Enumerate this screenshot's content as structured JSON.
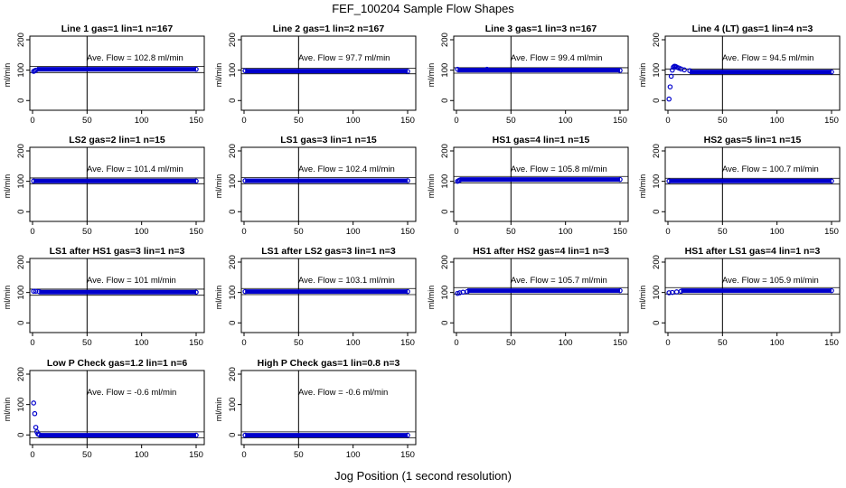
{
  "figure": {
    "title": "FEF_100204  Sample Flow Shapes",
    "xlabel": "Jog Position (1 second resolution)"
  },
  "chart_data": [
    {
      "type": "scatter",
      "title": "Line 1 gas=1 lin=1 n=167",
      "ylabel": "ml/min",
      "annotation": "Ave. Flow =  102.8  ml/min",
      "xlim": [
        0,
        150
      ],
      "ylim": [
        -20,
        200
      ],
      "xticks": [
        0,
        50,
        100,
        150
      ],
      "yticks": [
        0,
        100,
        200
      ],
      "reference_lines": {
        "vertical_x": 50,
        "horizontal_y": [
          92,
          112
        ]
      },
      "series": [
        {
          "color": "#0000cc",
          "points": [
            [
              1,
              96
            ],
            [
              2,
              98
            ],
            [
              3,
              100
            ],
            [
              150,
              103
            ]
          ],
          "fill_x": [
            4,
            150
          ],
          "fill_y": 103
        }
      ]
    },
    {
      "type": "scatter",
      "title": "Line 2 gas=1 lin=2 n=167",
      "ylabel": "ml/min",
      "annotation": "Ave. Flow =  97.7  ml/min",
      "xlim": [
        0,
        150
      ],
      "ylim": [
        -20,
        200
      ],
      "xticks": [
        0,
        50,
        100,
        150
      ],
      "yticks": [
        0,
        100,
        200
      ],
      "reference_lines": {
        "vertical_x": 50,
        "horizontal_y": [
          88,
          106
        ]
      },
      "series": [
        {
          "color": "#0000cc",
          "points": [
            [
              1,
              98
            ],
            [
              150,
              96
            ]
          ],
          "fill_x": [
            1,
            150
          ],
          "fill_y": 97
        }
      ]
    },
    {
      "type": "scatter",
      "title": "Line 3 gas=1 lin=3 n=167",
      "ylabel": "ml/min",
      "annotation": "Ave. Flow =  99.4  ml/min",
      "xlim": [
        0,
        150
      ],
      "ylim": [
        -20,
        200
      ],
      "xticks": [
        0,
        50,
        100,
        150
      ],
      "yticks": [
        0,
        100,
        200
      ],
      "reference_lines": {
        "vertical_x": 50,
        "horizontal_y": [
          90,
          108
        ]
      },
      "series": [
        {
          "color": "#0000cc",
          "points": [
            [
              1,
              103
            ],
            [
              28,
              103
            ],
            [
              150,
              99
            ]
          ],
          "fill_x": [
            1,
            150
          ],
          "fill_y": 100
        }
      ]
    },
    {
      "type": "scatter",
      "title": "Line 4 (LT) gas=1 lin=4 n=3",
      "ylabel": "ml/min",
      "annotation": "Ave. Flow =  94.5  ml/min",
      "xlim": [
        0,
        150
      ],
      "ylim": [
        -20,
        200
      ],
      "xticks": [
        0,
        50,
        100,
        150
      ],
      "yticks": [
        0,
        100,
        200
      ],
      "reference_lines": {
        "vertical_x": 50,
        "horizontal_y": [
          85,
          104
        ]
      },
      "series": [
        {
          "color": "#0000cc",
          "points": [
            [
              1,
              5
            ],
            [
              2,
              45
            ],
            [
              3,
              80
            ],
            [
              4,
              100
            ],
            [
              5,
              110
            ],
            [
              6,
              113
            ],
            [
              7,
              112
            ],
            [
              8,
              110
            ],
            [
              10,
              107
            ],
            [
              12,
              104
            ],
            [
              15,
              101
            ],
            [
              20,
              98
            ],
            [
              150,
              94
            ]
          ],
          "fill_x": [
            20,
            150
          ],
          "fill_y": 94
        }
      ]
    },
    {
      "type": "scatter",
      "title": "LS2 gas=2 lin=1 n=15",
      "ylabel": "ml/min",
      "annotation": "Ave. Flow =  101.4  ml/min",
      "xlim": [
        0,
        150
      ],
      "ylim": [
        -20,
        200
      ],
      "xticks": [
        0,
        50,
        100,
        150
      ],
      "yticks": [
        0,
        100,
        200
      ],
      "reference_lines": {
        "vertical_x": 50,
        "horizontal_y": [
          92,
          111
        ]
      },
      "series": [
        {
          "color": "#0000cc",
          "points": [
            [
              1,
              101
            ],
            [
              150,
              101
            ]
          ],
          "fill_x": [
            1,
            150
          ],
          "fill_y": 101
        }
      ]
    },
    {
      "type": "scatter",
      "title": "LS1 gas=3 lin=1 n=15",
      "ylabel": "ml/min",
      "annotation": "Ave. Flow =  102.4  ml/min",
      "xlim": [
        0,
        150
      ],
      "ylim": [
        -20,
        200
      ],
      "xticks": [
        0,
        50,
        100,
        150
      ],
      "yticks": [
        0,
        100,
        200
      ],
      "reference_lines": {
        "vertical_x": 50,
        "horizontal_y": [
          92,
          112
        ]
      },
      "series": [
        {
          "color": "#0000cc",
          "points": [
            [
              1,
              102
            ],
            [
              150,
              102
            ]
          ],
          "fill_x": [
            1,
            150
          ],
          "fill_y": 102
        }
      ]
    },
    {
      "type": "scatter",
      "title": "HS1 gas=4 lin=1 n=15",
      "ylabel": "ml/min",
      "annotation": "Ave. Flow =  105.8  ml/min",
      "xlim": [
        0,
        150
      ],
      "ylim": [
        -20,
        200
      ],
      "xticks": [
        0,
        50,
        100,
        150
      ],
      "yticks": [
        0,
        100,
        200
      ],
      "reference_lines": {
        "vertical_x": 50,
        "horizontal_y": [
          95,
          116
        ]
      },
      "series": [
        {
          "color": "#0000cc",
          "points": [
            [
              1,
              100
            ],
            [
              2,
              102
            ],
            [
              3,
              104
            ],
            [
              150,
              106
            ]
          ],
          "fill_x": [
            3,
            150
          ],
          "fill_y": 106
        }
      ]
    },
    {
      "type": "scatter",
      "title": "HS2 gas=5 lin=1 n=15",
      "ylabel": "ml/min",
      "annotation": "Ave. Flow =  100.7  ml/min",
      "xlim": [
        0,
        150
      ],
      "ylim": [
        -20,
        200
      ],
      "xticks": [
        0,
        50,
        100,
        150
      ],
      "yticks": [
        0,
        100,
        200
      ],
      "reference_lines": {
        "vertical_x": 50,
        "horizontal_y": [
          91,
          110
        ]
      },
      "series": [
        {
          "color": "#0000cc",
          "points": [
            [
              1,
              101
            ],
            [
              150,
              101
            ]
          ],
          "fill_x": [
            1,
            150
          ],
          "fill_y": 101
        }
      ]
    },
    {
      "type": "scatter",
      "title": "LS1 after HS1 gas=3 lin=1 n=3",
      "ylabel": "ml/min",
      "annotation": "Ave. Flow =  101  ml/min",
      "xlim": [
        0,
        150
      ],
      "ylim": [
        -20,
        200
      ],
      "xticks": [
        0,
        50,
        100,
        150
      ],
      "yticks": [
        0,
        100,
        200
      ],
      "reference_lines": {
        "vertical_x": 50,
        "horizontal_y": [
          91,
          111
        ]
      },
      "series": [
        {
          "color": "#0000cc",
          "points": [
            [
              1,
              104
            ],
            [
              3,
              104
            ],
            [
              6,
              103
            ],
            [
              150,
              101
            ]
          ],
          "fill_x": [
            6,
            150
          ],
          "fill_y": 101
        }
      ]
    },
    {
      "type": "scatter",
      "title": "LS1 after LS2 gas=3 lin=1 n=3",
      "ylabel": "ml/min",
      "annotation": "Ave. Flow =  103.1  ml/min",
      "xlim": [
        0,
        150
      ],
      "ylim": [
        -20,
        200
      ],
      "xticks": [
        0,
        50,
        100,
        150
      ],
      "yticks": [
        0,
        100,
        200
      ],
      "reference_lines": {
        "vertical_x": 50,
        "horizontal_y": [
          93,
          113
        ]
      },
      "series": [
        {
          "color": "#0000cc",
          "points": [
            [
              1,
              103
            ],
            [
              150,
              103
            ]
          ],
          "fill_x": [
            1,
            150
          ],
          "fill_y": 103
        }
      ]
    },
    {
      "type": "scatter",
      "title": "HS1 after HS2 gas=4 lin=1 n=3",
      "ylabel": "ml/min",
      "annotation": "Ave. Flow =  105.7  ml/min",
      "xlim": [
        0,
        150
      ],
      "ylim": [
        -20,
        200
      ],
      "xticks": [
        0,
        50,
        100,
        150
      ],
      "yticks": [
        0,
        100,
        200
      ],
      "reference_lines": {
        "vertical_x": 50,
        "horizontal_y": [
          95,
          116
        ]
      },
      "series": [
        {
          "color": "#0000cc",
          "points": [
            [
              1,
              97
            ],
            [
              3,
              99
            ],
            [
              6,
              101
            ],
            [
              10,
              103
            ],
            [
              150,
              106
            ]
          ],
          "fill_x": [
            10,
            150
          ],
          "fill_y": 106
        }
      ]
    },
    {
      "type": "scatter",
      "title": "HS1 after LS1 gas=4 lin=1 n=3",
      "ylabel": "ml/min",
      "annotation": "Ave. Flow =  105.9  ml/min",
      "xlim": [
        0,
        150
      ],
      "ylim": [
        -20,
        200
      ],
      "xticks": [
        0,
        50,
        100,
        150
      ],
      "yticks": [
        0,
        100,
        200
      ],
      "reference_lines": {
        "vertical_x": 50,
        "horizontal_y": [
          95,
          116
        ]
      },
      "series": [
        {
          "color": "#0000cc",
          "points": [
            [
              1,
              99
            ],
            [
              4,
              100
            ],
            [
              8,
              102
            ],
            [
              12,
              104
            ],
            [
              150,
              106
            ]
          ],
          "fill_x": [
            12,
            150
          ],
          "fill_y": 106
        }
      ]
    },
    {
      "type": "scatter",
      "title": "Low P Check gas=1.2 lin=1 n=6",
      "ylabel": "ml/min",
      "annotation": "Ave. Flow =  -0.6  ml/min",
      "xlim": [
        0,
        150
      ],
      "ylim": [
        -20,
        200
      ],
      "xticks": [
        0,
        50,
        100,
        150
      ],
      "yticks": [
        0,
        100,
        200
      ],
      "reference_lines": {
        "vertical_x": 50,
        "horizontal_y": [
          -10,
          10
        ]
      },
      "series": [
        {
          "color": "#0000cc",
          "points": [
            [
              1,
              105
            ],
            [
              2,
              70
            ],
            [
              3,
              25
            ],
            [
              4,
              10
            ],
            [
              5,
              3
            ],
            [
              6,
              1
            ],
            [
              150,
              -1
            ]
          ],
          "fill_x": [
            6,
            150
          ],
          "fill_y": -1
        }
      ]
    },
    {
      "type": "scatter",
      "title": "High P Check gas=1 lin=0.8 n=3",
      "ylabel": "ml/min",
      "annotation": "Ave. Flow =  -0.6  ml/min",
      "xlim": [
        0,
        150
      ],
      "ylim": [
        -20,
        200
      ],
      "xticks": [
        0,
        50,
        100,
        150
      ],
      "yticks": [
        0,
        100,
        200
      ],
      "reference_lines": {
        "vertical_x": 50,
        "horizontal_y": [
          -10,
          10
        ]
      },
      "series": [
        {
          "color": "#0000cc",
          "points": [
            [
              1,
              -1
            ],
            [
              150,
              -1
            ]
          ],
          "fill_x": [
            1,
            150
          ],
          "fill_y": -1
        }
      ]
    }
  ]
}
